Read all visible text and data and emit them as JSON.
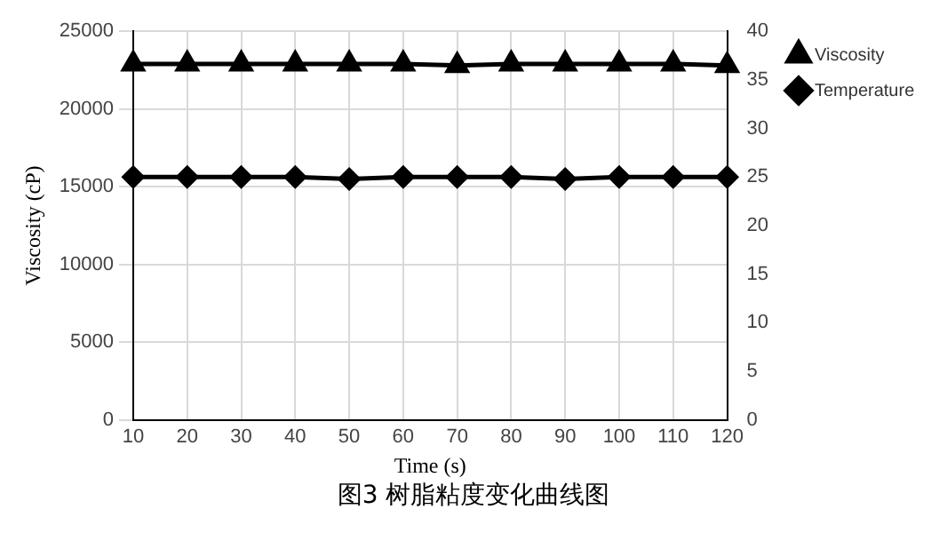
{
  "chart_data": {
    "type": "line",
    "title": "图3  树脂粘度变化曲线图",
    "xlabel": "Time (s)",
    "ylabel": "Viscosity (cP)",
    "categories": [
      "10",
      "20",
      "30",
      "40",
      "50",
      "60",
      "70",
      "80",
      "90",
      "100",
      "110",
      "120"
    ],
    "series": [
      {
        "name": "Viscosity",
        "color": "#000000",
        "marker": "triangle",
        "values": [
          22900,
          22900,
          22900,
          22900,
          22900,
          22900,
          22800,
          22900,
          22900,
          22900,
          22900,
          22800
        ]
      },
      {
        "name": "Temperature",
        "color": "#000000",
        "marker": "diamond",
        "axis": "y2",
        "values": [
          25,
          25,
          25,
          25,
          24.8,
          25,
          25,
          25,
          24.8,
          25,
          25,
          25
        ]
      }
    ],
    "ylim": [
      0,
      25000
    ],
    "yticks": [
      0,
      5000,
      10000,
      15000,
      20000,
      25000
    ],
    "y2lim": [
      0,
      40
    ],
    "y2ticks": [
      0,
      5,
      10,
      15,
      20,
      25,
      30,
      35,
      40
    ],
    "grid": true,
    "legend": "top right",
    "line_style": "solid"
  }
}
